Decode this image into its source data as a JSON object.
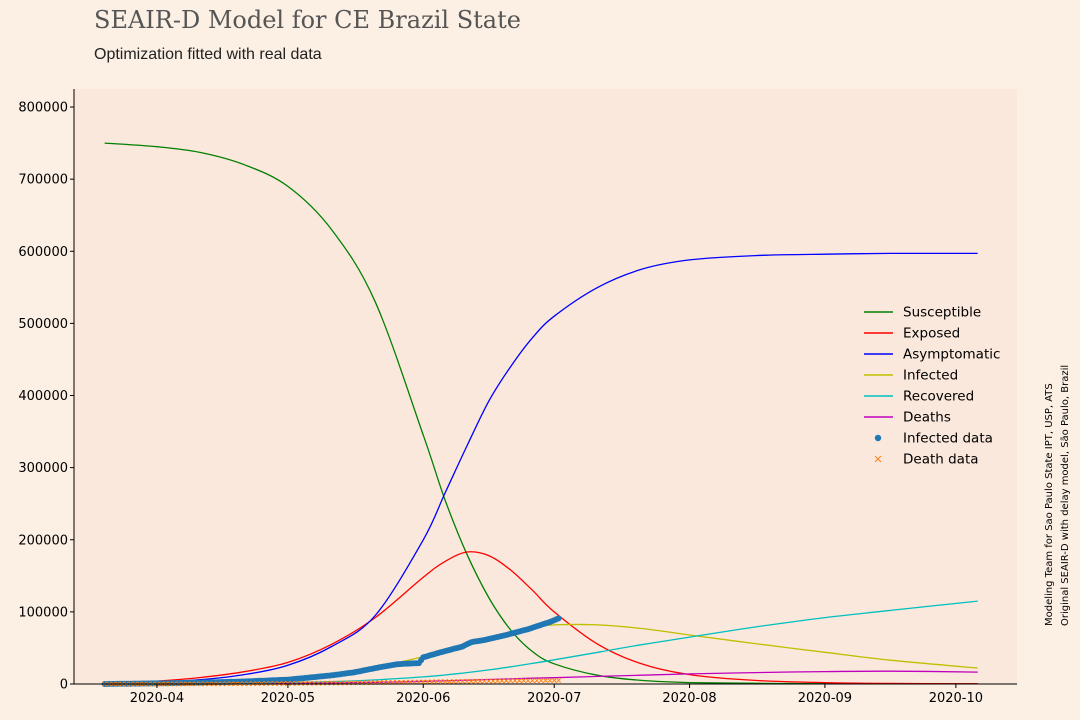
{
  "chart_data": {
    "type": "line",
    "title": "SEAIR-D Model for CE Brazil State",
    "subtitle": "Optimization fitted with real data",
    "credits": [
      "Modeling Team for Sao Paulo State IPT, USP, ATS",
      "Original SEAIR-D with delay model, São Paulo, Brazil"
    ],
    "x_range": [
      "2020-03-13",
      "2020-10-15"
    ],
    "y_range": [
      0,
      825000
    ],
    "x_ticks": [
      "2020-04-01",
      "2020-05-01",
      "2020-06-01",
      "2020-07-01",
      "2020-08-01",
      "2020-09-01",
      "2020-10-01"
    ],
    "x_tick_labels": [
      "2020-04",
      "2020-05",
      "2020-06",
      "2020-07",
      "2020-08",
      "2020-09",
      "2020-10"
    ],
    "y_ticks": [
      0,
      100000,
      200000,
      300000,
      400000,
      500000,
      600000,
      700000,
      800000
    ],
    "grid": false,
    "legend_position": "right",
    "series": [
      {
        "name": "Susceptible",
        "color": "#008000",
        "style": "line",
        "x": [
          "2020-03-20",
          "2020-04-01",
          "2020-04-11",
          "2020-04-21",
          "2020-05-01",
          "2020-05-11",
          "2020-05-21",
          "2020-06-01",
          "2020-06-06",
          "2020-06-11",
          "2020-06-16",
          "2020-06-21",
          "2020-06-26",
          "2020-07-01",
          "2020-07-11",
          "2020-07-21",
          "2020-08-01",
          "2020-08-16",
          "2020-09-01",
          "2020-09-16",
          "2020-10-06"
        ],
        "y": [
          750000,
          745000,
          737000,
          720000,
          690000,
          630000,
          530000,
          345000,
          255000,
          180000,
          120000,
          75000,
          45000,
          28000,
          12000,
          5000,
          2000,
          1000,
          500,
          300,
          200
        ]
      },
      {
        "name": "Exposed",
        "color": "#ff0000",
        "style": "line",
        "x": [
          "2020-03-20",
          "2020-04-01",
          "2020-04-11",
          "2020-04-21",
          "2020-05-01",
          "2020-05-11",
          "2020-05-21",
          "2020-06-01",
          "2020-06-06",
          "2020-06-11",
          "2020-06-16",
          "2020-06-21",
          "2020-06-26",
          "2020-07-01",
          "2020-07-11",
          "2020-07-21",
          "2020-08-01",
          "2020-08-16",
          "2020-09-01",
          "2020-09-16",
          "2020-10-06"
        ],
        "y": [
          500,
          4000,
          9000,
          17000,
          30000,
          55000,
          92000,
          148000,
          170000,
          183000,
          178000,
          158000,
          130000,
          100000,
          55000,
          28000,
          13000,
          5000,
          2000,
          800,
          300
        ]
      },
      {
        "name": "Asymptomatic",
        "color": "#0000ff",
        "style": "line",
        "x": [
          "2020-03-20",
          "2020-04-01",
          "2020-04-11",
          "2020-04-21",
          "2020-05-01",
          "2020-05-11",
          "2020-05-21",
          "2020-06-01",
          "2020-06-06",
          "2020-06-11",
          "2020-06-16",
          "2020-06-21",
          "2020-06-26",
          "2020-07-01",
          "2020-07-11",
          "2020-07-21",
          "2020-08-01",
          "2020-08-16",
          "2020-09-01",
          "2020-09-16",
          "2020-10-06"
        ],
        "y": [
          200,
          2000,
          6000,
          13000,
          26000,
          52000,
          95000,
          200000,
          265000,
          330000,
          392000,
          440000,
          480000,
          510000,
          550000,
          575000,
          588000,
          594000,
          596000,
          597000,
          597000
        ]
      },
      {
        "name": "Infected",
        "color": "#bfbf00",
        "style": "line",
        "x": [
          "2020-03-20",
          "2020-04-01",
          "2020-04-11",
          "2020-04-21",
          "2020-05-01",
          "2020-05-11",
          "2020-05-21",
          "2020-06-01",
          "2020-06-06",
          "2020-06-11",
          "2020-06-16",
          "2020-06-21",
          "2020-06-26",
          "2020-07-01",
          "2020-07-11",
          "2020-07-21",
          "2020-08-01",
          "2020-08-16",
          "2020-09-01",
          "2020-09-16",
          "2020-10-06"
        ],
        "y": [
          100,
          1000,
          2500,
          5000,
          9000,
          14000,
          23000,
          38000,
          46000,
          55000,
          64000,
          72000,
          78000,
          82000,
          82000,
          77000,
          68000,
          56000,
          44000,
          33000,
          22000
        ]
      },
      {
        "name": "Recovered",
        "color": "#00bfbf",
        "style": "line",
        "x": [
          "2020-03-20",
          "2020-04-01",
          "2020-04-11",
          "2020-04-21",
          "2020-05-01",
          "2020-05-11",
          "2020-05-21",
          "2020-06-01",
          "2020-06-06",
          "2020-06-11",
          "2020-06-16",
          "2020-06-21",
          "2020-06-26",
          "2020-07-01",
          "2020-07-11",
          "2020-07-21",
          "2020-08-01",
          "2020-08-16",
          "2020-09-01",
          "2020-09-16",
          "2020-10-06"
        ],
        "y": [
          0,
          100,
          400,
          900,
          1800,
          3300,
          5700,
          9800,
          12500,
          15800,
          19500,
          23800,
          28500,
          33500,
          44000,
          54500,
          65000,
          79000,
          92000,
          102000,
          115000
        ]
      },
      {
        "name": "Deaths",
        "color": "#bf00bf",
        "style": "line",
        "x": [
          "2020-03-20",
          "2020-04-01",
          "2020-04-11",
          "2020-04-21",
          "2020-05-01",
          "2020-05-11",
          "2020-05-21",
          "2020-06-01",
          "2020-06-06",
          "2020-06-11",
          "2020-06-16",
          "2020-06-21",
          "2020-06-26",
          "2020-07-01",
          "2020-07-11",
          "2020-07-21",
          "2020-08-01",
          "2020-08-16",
          "2020-09-01",
          "2020-09-16",
          "2020-10-06"
        ],
        "y": [
          0,
          100,
          250,
          500,
          900,
          1500,
          2300,
          3700,
          4500,
          5300,
          6200,
          7100,
          8000,
          8800,
          10500,
          12200,
          14000,
          15800,
          17200,
          17800,
          16500
        ]
      },
      {
        "name": "Infected data",
        "color": "#1f77b4",
        "style": "dots",
        "x": [
          "2020-03-20",
          "2020-04-01",
          "2020-04-11",
          "2020-04-21",
          "2020-05-01",
          "2020-05-06",
          "2020-05-11",
          "2020-05-16",
          "2020-05-21",
          "2020-05-26",
          "2020-05-31",
          "2020-06-01",
          "2020-06-05",
          "2020-06-10",
          "2020-06-12",
          "2020-06-15",
          "2020-06-20",
          "2020-06-25",
          "2020-06-30",
          "2020-07-02"
        ],
        "y": [
          0,
          900,
          2000,
          3500,
          6000,
          9000,
          12000,
          16000,
          22000,
          27500,
          29000,
          37000,
          44000,
          52000,
          58000,
          61000,
          68000,
          76000,
          86000,
          91000
        ]
      },
      {
        "name": "Death data",
        "color": "#ff7f0e",
        "style": "x",
        "x": [
          "2020-03-20",
          "2020-04-01",
          "2020-04-11",
          "2020-04-21",
          "2020-05-01",
          "2020-05-11",
          "2020-05-21",
          "2020-06-01",
          "2020-06-11",
          "2020-06-21",
          "2020-07-02"
        ],
        "y": [
          0,
          50,
          150,
          400,
          800,
          1300,
          2000,
          2800,
          3800,
          4500,
          5000
        ]
      }
    ]
  }
}
